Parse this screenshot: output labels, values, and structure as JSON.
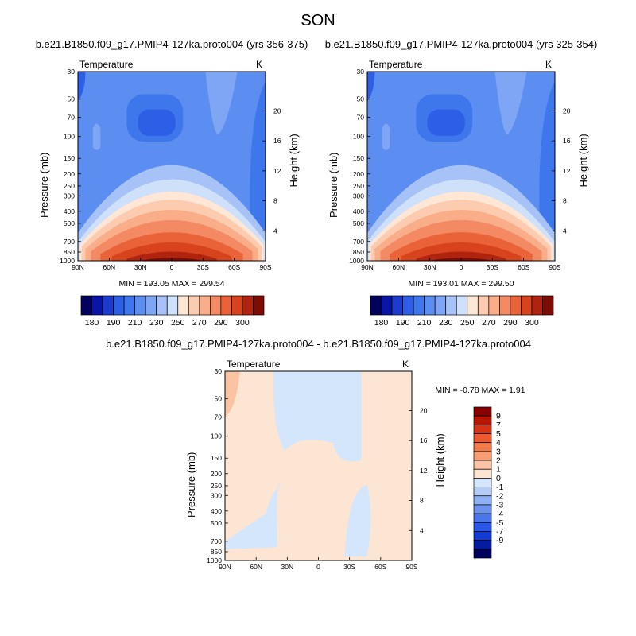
{
  "figure_title": "SON",
  "chart_data": [
    {
      "type": "contour",
      "title": "b.e21.B1850.f09_g17.PMIP4-127ka.proto004 (yrs 356-375)",
      "variable": "Temperature",
      "units": "K",
      "xlabel": "",
      "ylabel": "Pressure (mb)",
      "y2label": "Height (km)",
      "x_ticks": [
        "90N",
        "60N",
        "30N",
        "0",
        "30S",
        "60S",
        "90S"
      ],
      "y_ticks": [
        "30",
        "50",
        "70",
        "100",
        "150",
        "200",
        "250",
        "300",
        "400",
        "500",
        "700",
        "850",
        "1000"
      ],
      "y2_ticks": [
        "20",
        "16",
        "12",
        "8",
        "4"
      ],
      "stats": "MIN = 193.05   MAX = 299.54",
      "colorbar_labels": [
        "180",
        "190",
        "210",
        "230",
        "250",
        "270",
        "290",
        "300"
      ]
    },
    {
      "type": "contour",
      "title": "b.e21.B1850.f09_g17.PMIP4-127ka.proto004 (yrs 325-354)",
      "variable": "Temperature",
      "units": "K",
      "xlabel": "",
      "ylabel": "Pressure (mb)",
      "y2label": "Height (km)",
      "x_ticks": [
        "90N",
        "60N",
        "30N",
        "0",
        "30S",
        "60S",
        "90S"
      ],
      "y_ticks": [
        "30",
        "50",
        "70",
        "100",
        "150",
        "200",
        "250",
        "300",
        "400",
        "500",
        "700",
        "850",
        "1000"
      ],
      "y2_ticks": [
        "20",
        "16",
        "12",
        "8",
        "4"
      ],
      "stats": "MIN = 193.01   MAX = 299.50",
      "colorbar_labels": [
        "180",
        "190",
        "210",
        "230",
        "250",
        "270",
        "290",
        "300"
      ]
    },
    {
      "type": "contour",
      "title": "b.e21.B1850.f09_g17.PMIP4-127ka.proto004 - b.e21.B1850.f09_g17.PMIP4-127ka.proto004",
      "variable": "Temperature",
      "units": "K",
      "xlabel": "",
      "ylabel": "Pressure (mb)",
      "y2label": "Height (km)",
      "x_ticks": [
        "90N",
        "60N",
        "30N",
        "0",
        "30S",
        "60S",
        "90S"
      ],
      "y_ticks": [
        "30",
        "50",
        "70",
        "100",
        "150",
        "200",
        "250",
        "300",
        "400",
        "500",
        "700",
        "850",
        "1000"
      ],
      "y2_ticks": [
        "20",
        "16",
        "12",
        "8",
        "4"
      ],
      "stats": "MIN =  -0.78   MAX =   1.91",
      "colorbar_labels": [
        "9",
        "7",
        "5",
        "4",
        "3",
        "2",
        "1",
        "0",
        "-1",
        "-2",
        "-3",
        "-4",
        "-5",
        "-7",
        "-9"
      ]
    }
  ],
  "colors": {
    "abs_scale": [
      "#02025e",
      "#0a14a8",
      "#1c3ccc",
      "#2c5ee6",
      "#3e76ec",
      "#5b8ef0",
      "#7ea6f4",
      "#a6c2f6",
      "#cfe0fa",
      "#ffe6d5",
      "#fdccb0",
      "#f9ad89",
      "#f38a63",
      "#ea6338",
      "#d6431c",
      "#b0230e",
      "#7d0c05"
    ],
    "diff_scale": [
      "#870000",
      "#b21600",
      "#d63214",
      "#ea5a2e",
      "#f27b4c",
      "#f79d72",
      "#fac3a3",
      "#fde5d3",
      "#d4e6fb",
      "#b3cdf7",
      "#8eb1f2",
      "#6b93ee",
      "#4976eb",
      "#2958e6",
      "#123cd4",
      "#061c9e",
      "#00005e"
    ]
  }
}
